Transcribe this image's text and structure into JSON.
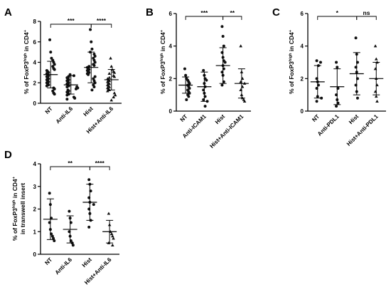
{
  "chart_data": [
    {
      "panel": "A",
      "type": "scatter",
      "categories": [
        "NT",
        "Anti-IL6",
        "Hist",
        "Hist+Anti-IL6"
      ],
      "ylabel": "% of FoxP3^high in CD4^+",
      "ylabel_parts": [
        "% of FoxP3",
        "high",
        " in CD4",
        "+"
      ],
      "ylim": [
        0,
        8
      ],
      "yticks": [
        "0",
        "2",
        "4",
        "6",
        "8"
      ],
      "mean": [
        2.8,
        1.8,
        3.5,
        2.3
      ],
      "sd": [
        1.3,
        0.9,
        1.5,
        1.0
      ],
      "points": [
        [
          6.2,
          5.0,
          4.4,
          4.2,
          4.0,
          3.8,
          3.6,
          3.4,
          3.3,
          3.2,
          3.1,
          3.0,
          2.9,
          2.8,
          2.7,
          2.6,
          2.5,
          2.4,
          2.3,
          2.2,
          2.1,
          2.0,
          1.9,
          1.8,
          1.7,
          1.5,
          1.4,
          1.2,
          1.0,
          0.9
        ],
        [
          2.8,
          2.7,
          2.6,
          2.5,
          2.4,
          2.3,
          2.2,
          2.1,
          2.0,
          1.9,
          1.8,
          1.7,
          1.6,
          1.6,
          1.5,
          1.4,
          1.3,
          1.2,
          1.1,
          1.0,
          0.9,
          0.8,
          0.6,
          0.5,
          0.4
        ],
        [
          7.2,
          6.0,
          5.3,
          5.0,
          4.8,
          4.6,
          4.4,
          4.2,
          4.0,
          3.8,
          3.7,
          3.6,
          3.5,
          3.4,
          3.3,
          3.2,
          3.1,
          3.0,
          2.9,
          2.8,
          2.6,
          2.4,
          2.2,
          2.0,
          1.8,
          1.6,
          1.3
        ],
        [
          4.4,
          3.6,
          3.3,
          3.1,
          3.0,
          2.9,
          2.7,
          2.6,
          2.5,
          2.4,
          2.3,
          2.2,
          2.1,
          2.0,
          1.9,
          1.8,
          1.7,
          1.6,
          1.5,
          1.4,
          1.3,
          1.2,
          1.0,
          0.8,
          0.6,
          0.3
        ]
      ],
      "comparisons": [
        {
          "from": 0,
          "to": 2,
          "label": "***"
        },
        {
          "from": 2,
          "to": 3,
          "label": "****"
        }
      ]
    },
    {
      "panel": "B",
      "type": "scatter",
      "categories": [
        "NT",
        "Anti-ICAM1",
        "Hist",
        "Hist+Anti-ICAM1"
      ],
      "ylabel": "% of FoxP3^high in CD4^+",
      "ylabel_parts": [
        "% of FoxP3",
        "high",
        " in CD4",
        "+"
      ],
      "ylim": [
        0,
        6
      ],
      "yticks": [
        "0",
        "2",
        "4",
        "6"
      ],
      "mean": [
        1.6,
        1.5,
        2.8,
        1.7
      ],
      "sd": [
        0.5,
        0.9,
        1.1,
        0.9
      ],
      "points": [
        [
          2.6,
          2.2,
          2.0,
          1.9,
          1.8,
          1.7,
          1.6,
          1.5,
          1.4,
          1.3,
          1.2,
          1.1,
          1.0,
          0.9,
          0.7
        ],
        [
          2.5,
          2.2,
          2.0,
          1.9,
          1.7,
          1.5,
          1.3,
          1.1,
          0.9,
          0.7,
          0.6,
          0.3
        ],
        [
          5.2,
          4.6,
          4.0,
          3.6,
          3.3,
          3.1,
          3.0,
          2.8,
          2.6,
          2.4,
          2.2,
          1.8,
          1.6
        ],
        [
          4.0,
          2.4,
          2.0,
          1.8,
          1.7,
          1.5,
          1.3,
          1.0,
          0.8,
          0.7,
          0.6
        ]
      ],
      "comparisons": [
        {
          "from": 0,
          "to": 2,
          "label": "***"
        },
        {
          "from": 2,
          "to": 3,
          "label": "**"
        }
      ]
    },
    {
      "panel": "C",
      "type": "scatter",
      "categories": [
        "NT",
        "Anti-PDL1",
        "Hist",
        "Hist+Anti-PDL1"
      ],
      "ylabel": "% of FoxP3^high in CD4^+",
      "ylabel_parts": [
        "% of FoxP3",
        "high",
        " in CD4",
        "+"
      ],
      "ylim": [
        0,
        6
      ],
      "yticks": [
        "0",
        "2",
        "4",
        "6"
      ],
      "mean": [
        1.8,
        1.5,
        2.3,
        2.0
      ],
      "sd": [
        1.0,
        1.1,
        1.3,
        1.0
      ],
      "points": [
        [
          3.1,
          3.0,
          2.8,
          2.0,
          1.8,
          1.6,
          1.4,
          0.9,
          0.8,
          0.6
        ],
        [
          3.0,
          2.7,
          1.4,
          1.0,
          0.7,
          0.5,
          0.3
        ],
        [
          4.5,
          3.5,
          3.0,
          2.7,
          2.4,
          2.0,
          1.6,
          1.2,
          0.8
        ],
        [
          4.0,
          3.2,
          3.0,
          2.6,
          2.0,
          1.6,
          1.2,
          0.9,
          0.6
        ]
      ],
      "comparisons": [
        {
          "from": 0,
          "to": 2,
          "label": "*"
        },
        {
          "from": 2,
          "to": 3,
          "label": "ns"
        }
      ]
    },
    {
      "panel": "D",
      "type": "scatter",
      "categories": [
        "NT",
        "Anti-IL6",
        "Hist",
        "Hist+Anti-IL6"
      ],
      "ylabel": "% of FoxP3^high in CD4^+ in transwell insert",
      "ylabel_parts": [
        "% of FoxP3",
        "high",
        " in CD4",
        "+"
      ],
      "ylabel_line2": "in transwell insert",
      "ylim": [
        0,
        4
      ],
      "yticks": [
        "0",
        "1",
        "2",
        "3",
        "4"
      ],
      "mean": [
        1.55,
        1.1,
        2.3,
        1.0
      ],
      "sd": [
        0.9,
        0.6,
        0.8,
        0.5
      ],
      "points": [
        [
          2.7,
          2.2,
          1.6,
          1.4,
          1.1,
          0.9,
          0.8,
          0.7,
          0.6
        ],
        [
          1.9,
          1.6,
          1.4,
          1.0,
          0.8,
          0.6,
          0.5,
          0.4
        ],
        [
          3.3,
          3.1,
          2.8,
          2.5,
          2.3,
          2.2,
          2.0,
          1.8,
          1.5,
          1.2
        ],
        [
          1.8,
          1.3,
          1.0,
          0.9,
          0.8,
          0.7,
          0.5,
          0.4
        ]
      ],
      "comparisons": [
        {
          "from": 0,
          "to": 2,
          "label": "**"
        },
        {
          "from": 2,
          "to": 3,
          "label": "****"
        }
      ]
    }
  ]
}
